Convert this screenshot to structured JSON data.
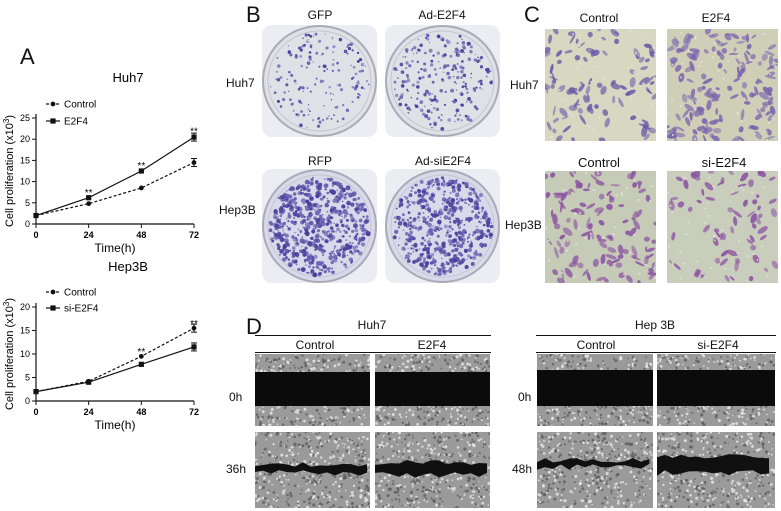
{
  "panel_a": {
    "label": "A",
    "charts": [
      {
        "type": "line",
        "title": "Huh7",
        "ylabel": "Cell proliferation (x10",
        "ylabel_sup": "3",
        "ylabel_end": ")",
        "xlabel": "Time(h)",
        "x": [
          0,
          24,
          48,
          72
        ],
        "xlim": [
          0,
          72
        ],
        "ylim": [
          0,
          25
        ],
        "yticks": [
          0,
          5,
          10,
          15,
          20,
          25
        ],
        "series": [
          {
            "name": "Control",
            "values": [
              2,
              4.8,
              8.5,
              14.5
            ],
            "style": "dashed",
            "marker": "circle"
          },
          {
            "name": "E2F4",
            "values": [
              2,
              6.2,
              12.5,
              20.5
            ],
            "style": "solid",
            "marker": "square"
          }
        ],
        "significance": [
          {
            "x": 24,
            "y": 7.6,
            "text": "**"
          },
          {
            "x": 48,
            "y": 13.9,
            "text": "**"
          },
          {
            "x": 72,
            "y": 22.0,
            "text": "**"
          }
        ]
      },
      {
        "type": "line",
        "title": "Hep3B",
        "ylabel": "Cell proliferation (x10",
        "ylabel_sup": "3",
        "ylabel_end": ")",
        "xlabel": "Time(h)",
        "x": [
          0,
          24,
          48,
          72
        ],
        "xlim": [
          0,
          72
        ],
        "ylim": [
          0,
          20
        ],
        "yticks": [
          0,
          5,
          10,
          15,
          20
        ],
        "series": [
          {
            "name": "Control",
            "values": [
              2,
              4.2,
              9.5,
              15.5
            ],
            "style": "dashed",
            "marker": "circle"
          },
          {
            "name": "si-E2F4",
            "values": [
              2,
              4.0,
              7.8,
              11.5
            ],
            "style": "solid",
            "marker": "square"
          }
        ],
        "significance": [
          {
            "x": 48,
            "y": 10.6,
            "text": "**"
          },
          {
            "x": 72,
            "y": 16.6,
            "text": "**"
          }
        ]
      }
    ]
  },
  "panel_b": {
    "label": "B",
    "col_labels_top": [
      "GFP",
      "Ad-E2F4"
    ],
    "col_labels_bottom": [
      "RFP",
      "Ad-siE2F4"
    ],
    "row_labels": [
      "Huh7",
      "Hep3B"
    ]
  },
  "panel_c": {
    "label": "C",
    "col_labels_top": [
      "Control",
      "E2F4"
    ],
    "col_labels_bottom": [
      "Control",
      "si-E2F4"
    ],
    "row_labels": [
      "Huh7",
      "Hep3B"
    ]
  },
  "panel_d": {
    "label": "D",
    "groups": [
      {
        "title": "Huh7",
        "cols": [
          "Control",
          "E2F4"
        ],
        "rows": [
          "0h",
          "36h"
        ]
      },
      {
        "title": "Hep 3B",
        "cols": [
          "Control",
          "si-E2F4"
        ],
        "rows": [
          "0h",
          "48h"
        ]
      }
    ]
  }
}
